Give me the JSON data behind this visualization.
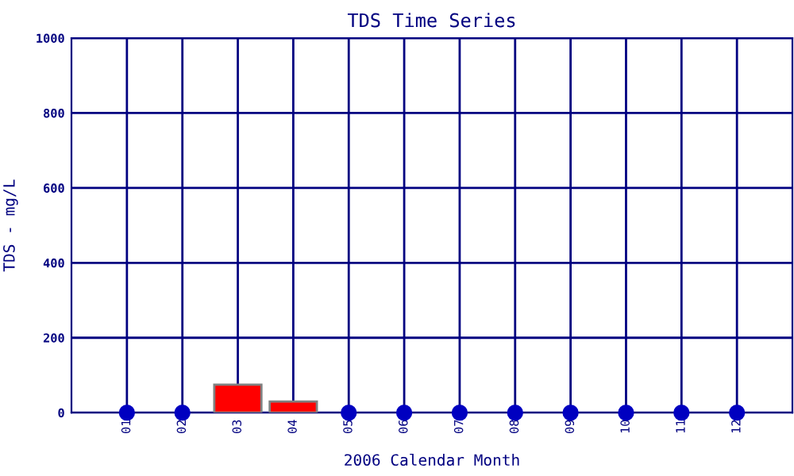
{
  "chart_data": {
    "type": "bar",
    "title": "TDS Time Series",
    "xlabel": "2006 Calendar Month",
    "ylabel": "TDS - mg/L",
    "categories": [
      "01",
      "02",
      "03",
      "04",
      "05",
      "06",
      "07",
      "08",
      "09",
      "10",
      "11",
      "12"
    ],
    "series": [
      {
        "color": "#ff0000",
        "values": [
          null,
          null,
          75,
          30,
          null,
          null,
          null,
          null,
          null,
          null,
          null,
          null
        ]
      },
      {
        "type": "scatter",
        "color": "#0000c0",
        "x": [
          "01",
          "02",
          "05",
          "06",
          "07",
          "08",
          "09",
          "10",
          "11",
          "12"
        ],
        "values": [
          0,
          0,
          0,
          0,
          0,
          0,
          0,
          0,
          0,
          0
        ]
      }
    ],
    "ylim": [
      0,
      1000
    ],
    "yticks": [
      0,
      200,
      400,
      600,
      800,
      1000
    ],
    "grid": true,
    "marker": "circle",
    "legend": false
  }
}
